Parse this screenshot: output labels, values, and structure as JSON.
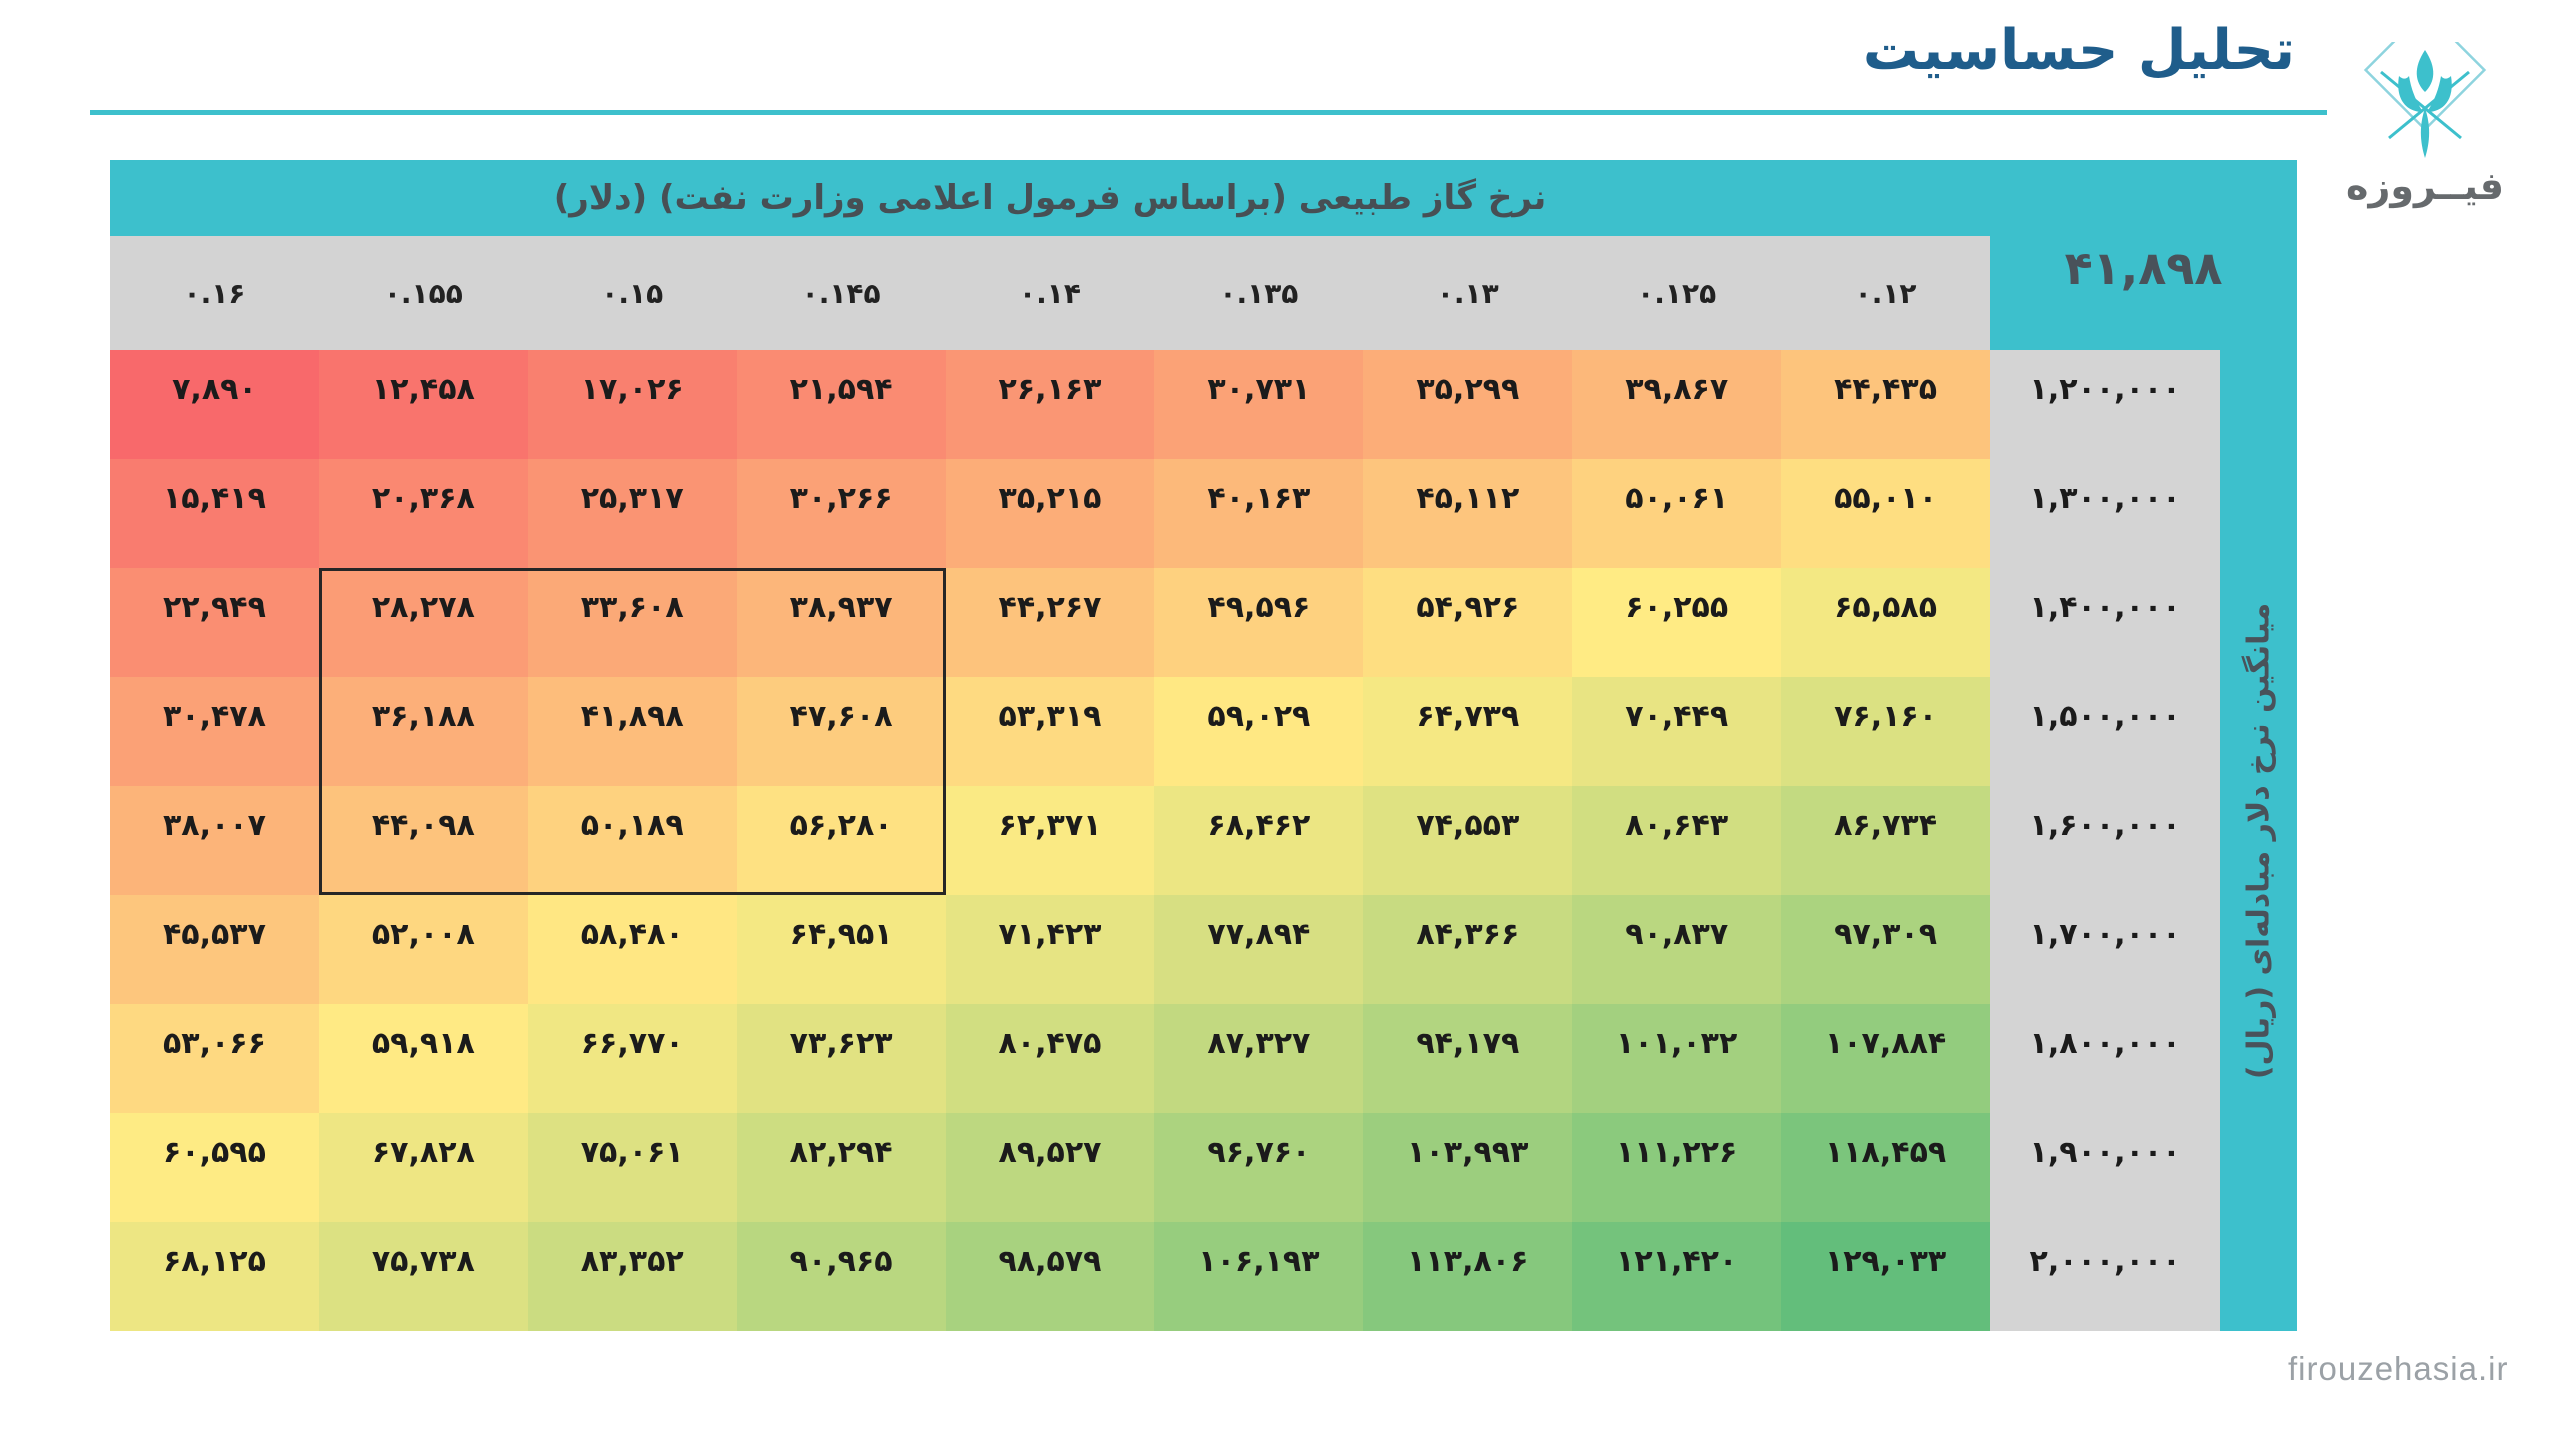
{
  "title": "تحلیل حساسیت",
  "logo": {
    "text": "فیــروزه",
    "emblem": "firouzeh-diamond-tulip"
  },
  "footer": {
    "website": "firouzehasia.ir"
  },
  "colors": {
    "accent_teal": "#3DC0CC",
    "title_blue": "#1F5D8B",
    "header_gray": "#D3D3D3",
    "dark_text": "#49525A",
    "cell_text": "#1b1b1b",
    "url_gray": "#9BA1A6"
  },
  "chart_data": {
    "type": "heatmap",
    "title": "تحلیل حساسیت",
    "x_axis_label": "نرخ گاز طبیعی (براساس فرمول اعلامی وزارت نفت) (دلار)",
    "y_axis_label": "میانگین نرخ دلار مبادله‌ای (ریال)",
    "reference_value": 41898,
    "columns": [
      0.16,
      0.155,
      0.15,
      0.145,
      0.14,
      0.135,
      0.13,
      0.125,
      0.12
    ],
    "rows": [
      1200000,
      1300000,
      1400000,
      1500000,
      1600000,
      1700000,
      1800000,
      1900000,
      2000000
    ],
    "values": [
      [
        7890,
        12458,
        17026,
        21594,
        26163,
        30731,
        35299,
        39867,
        44435
      ],
      [
        15419,
        20368,
        25317,
        30266,
        35215,
        40163,
        45112,
        50061,
        55010
      ],
      [
        22949,
        28278,
        33608,
        38937,
        44267,
        49596,
        54926,
        60255,
        65585
      ],
      [
        30478,
        36188,
        41898,
        47608,
        53319,
        59029,
        64739,
        70449,
        76160
      ],
      [
        38007,
        44098,
        50189,
        56280,
        62371,
        68462,
        74553,
        80643,
        86734
      ],
      [
        45537,
        52008,
        58480,
        64951,
        71423,
        77894,
        84366,
        90837,
        97309
      ],
      [
        53066,
        59918,
        66770,
        73623,
        80475,
        87327,
        94179,
        101032,
        107884
      ],
      [
        60595,
        67828,
        75061,
        82294,
        89527,
        96760,
        103993,
        111226,
        118459
      ],
      [
        68125,
        75738,
        83352,
        90965,
        98579,
        106193,
        113806,
        121420,
        129033
      ]
    ],
    "highlight_box": {
      "row_start": 3,
      "row_end": 5,
      "col_start": 2,
      "col_end": 4
    },
    "colormap": {
      "min_color": "#F8696B",
      "mid_color": "#FFEB84",
      "max_color": "#63BE7B",
      "min_value": 7890,
      "mid_value": 60255,
      "max_value": 129033
    },
    "number_script": "persian-digits",
    "legend": "none",
    "grid": "off"
  }
}
